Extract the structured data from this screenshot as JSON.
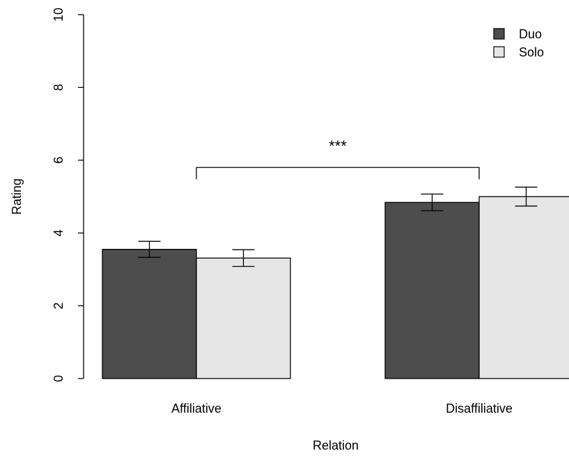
{
  "chart_data": {
    "type": "bar",
    "title": "",
    "xlabel": "Relation",
    "ylabel": "Rating",
    "ylim": [
      0,
      10
    ],
    "yticks": [
      "0",
      "2",
      "4",
      "6",
      "8",
      "10"
    ],
    "categories": [
      "Affiliative",
      "Disaffiliative"
    ],
    "series": [
      {
        "name": "Duo",
        "values": [
          3.55,
          4.84
        ],
        "error": [
          0.22,
          0.23
        ],
        "color": "#4d4d4d"
      },
      {
        "name": "Solo",
        "values": [
          3.31,
          5.0
        ],
        "error": [
          0.23,
          0.26
        ],
        "color": "#e6e6e6"
      }
    ],
    "legend_position": "top-right",
    "grid": false,
    "annotation": {
      "text": "***",
      "bracket_from": "Affiliative",
      "bracket_to": "Disaffiliative",
      "bracket_y": 5.8
    }
  }
}
